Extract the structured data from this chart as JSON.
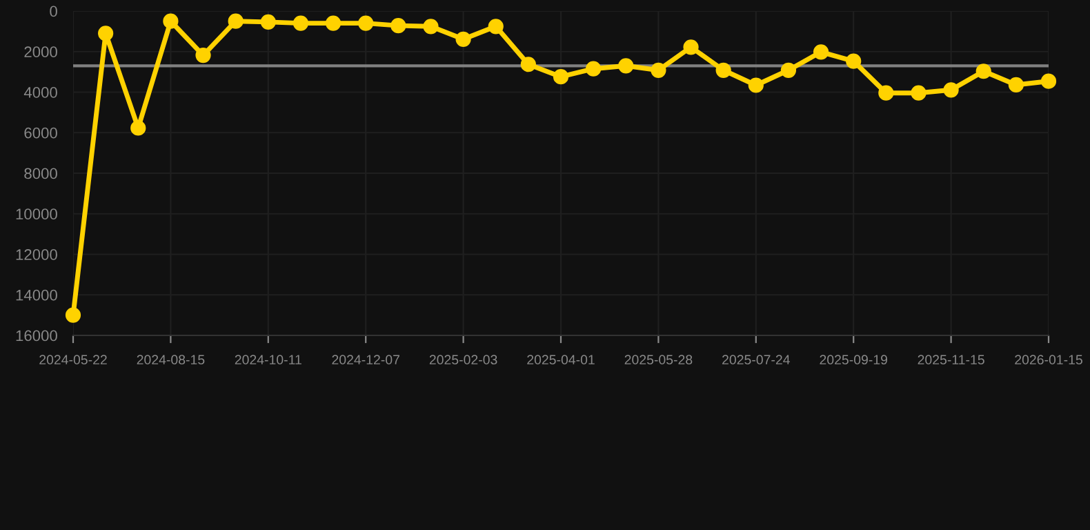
{
  "chart_data": {
    "type": "line",
    "categories": [
      "2024-05-22",
      null,
      null,
      "2024-08-15",
      null,
      null,
      "2024-10-11",
      null,
      null,
      "2024-12-07",
      null,
      null,
      "2025-02-03",
      null,
      null,
      "2025-04-01",
      null,
      null,
      "2025-05-28",
      null,
      null,
      "2025-07-24",
      null,
      null,
      "2025-09-19",
      null,
      null,
      "2025-11-15",
      null,
      null,
      "2026-01-15"
    ],
    "series": [
      {
        "color": "#ffd200",
        "values": [
          15000,
          1100,
          5770,
          500,
          2180,
          500,
          540,
          600,
          600,
          600,
          720,
          760,
          1390,
          760,
          2630,
          3240,
          2850,
          2700,
          2920,
          1780,
          2920,
          3660,
          2920,
          2020,
          2470,
          4040,
          4040,
          3890,
          2970,
          3640,
          3460
        ]
      }
    ],
    "ylim": [
      16000,
      0
    ],
    "yticks": [
      0,
      2000,
      4000,
      6000,
      8000,
      10000,
      12000,
      14000,
      16000
    ],
    "ref_lines": [
      {
        "axis": "y",
        "value": 2700,
        "color": "#808080"
      }
    ],
    "grid": true,
    "marker": "circle",
    "line_style": "solid"
  }
}
